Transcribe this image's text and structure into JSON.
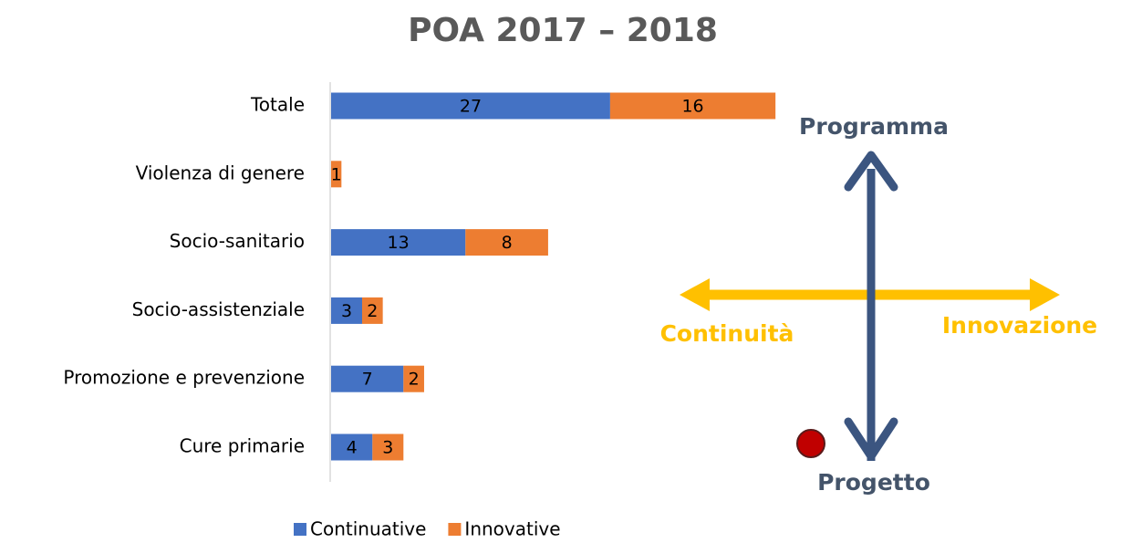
{
  "chart_data": {
    "type": "stacked_bar_horizontal",
    "title": "POA 2017 – 2018",
    "categories": [
      "Totale",
      "Violenza di genere",
      "Socio-sanitario",
      "Socio-assistenziale",
      "Promozione e prevenzione",
      "Cure primarie"
    ],
    "series": [
      {
        "name": "Continuative",
        "color": "#4472c4",
        "values": [
          27,
          null,
          13,
          3,
          7,
          4
        ]
      },
      {
        "name": "Innovative",
        "color": "#ed7d31",
        "values": [
          16,
          1,
          8,
          2,
          2,
          3
        ]
      }
    ],
    "annotations": [
      "Programma",
      "Progetto",
      "Continuità",
      "Innovazione"
    ]
  }
}
